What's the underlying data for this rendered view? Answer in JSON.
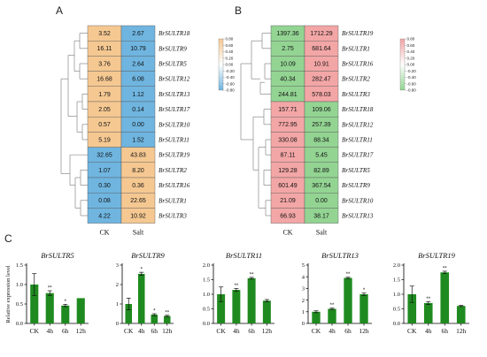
{
  "panel_labels": [
    "A",
    "B",
    "C"
  ],
  "colors": {
    "heat_A_high": "#f5c892",
    "heat_A_low": "#6fb5e0",
    "heat_B_high": "#f3a6a6",
    "heat_B_low": "#93d493",
    "bar_fill": "#1f8a1f",
    "axis": "#000000"
  },
  "chart_data": [
    {
      "type": "heatmap",
      "panel": "A",
      "columns": [
        "CK",
        "Salt"
      ],
      "rows": [
        "BrSULTR18",
        "BrSULTR9",
        "BrSULTR5",
        "BrSULTR12",
        "BrSULTR13",
        "BrSULTR17",
        "BrSULTR10",
        "BrSULTR11",
        "BrSULTR19",
        "BrSULTR2",
        "BrSULTR16",
        "BrSULTR1",
        "BrSULTR3"
      ],
      "values": [
        [
          3.52,
          2.67
        ],
        [
          16.11,
          10.79
        ],
        [
          3.76,
          2.64
        ],
        [
          16.68,
          6.08
        ],
        [
          1.79,
          1.12
        ],
        [
          2.05,
          0.14
        ],
        [
          0.57,
          0.0
        ],
        [
          5.19,
          1.52
        ],
        [
          32.65,
          43.83
        ],
        [
          1.07,
          8.2
        ],
        [
          0.3,
          0.36
        ],
        [
          0.08,
          22.65
        ],
        [
          4.22,
          10.92
        ]
      ],
      "value_labels": [
        [
          "3.52",
          "2.67"
        ],
        [
          "16.11",
          "10.79"
        ],
        [
          "3.76",
          "2.64"
        ],
        [
          "16.68",
          "6.08"
        ],
        [
          "1.79",
          "1.12"
        ],
        [
          "2.05",
          "0.14"
        ],
        [
          "0.57",
          "0.00"
        ],
        [
          "5.19",
          "1.52"
        ],
        [
          "32.65",
          "43.83"
        ],
        [
          "1.07",
          "8.20"
        ],
        [
          "0.30",
          "0.36"
        ],
        [
          "0.08",
          "22.65"
        ],
        [
          "4.22",
          "10.92"
        ]
      ],
      "color_state": [
        [
          "high",
          "low"
        ],
        [
          "high",
          "low"
        ],
        [
          "high",
          "low"
        ],
        [
          "high",
          "low"
        ],
        [
          "high",
          "low"
        ],
        [
          "high",
          "low"
        ],
        [
          "high",
          "low"
        ],
        [
          "high",
          "low"
        ],
        [
          "low",
          "high"
        ],
        [
          "low",
          "high"
        ],
        [
          "low",
          "high"
        ],
        [
          "low",
          "high"
        ],
        [
          "low",
          "high"
        ]
      ],
      "scale_ticks": [
        "0.80",
        "0.60",
        "0.40",
        "0.20",
        "0.00",
        "-0.20",
        "-0.40",
        "-0.60",
        "-0.80"
      ]
    },
    {
      "type": "heatmap",
      "panel": "B",
      "columns": [
        "CK",
        "Salt"
      ],
      "rows": [
        "BrSULTR19",
        "BrSULTR1",
        "BrSULTR16",
        "BrSULTR2",
        "BrSULTR3",
        "BrSULTR18",
        "BrSULTR12",
        "BrSULTR11",
        "BrSULTR17",
        "BrSULTR5",
        "BrSULTR9",
        "BrSULTR10",
        "BrSULTR13"
      ],
      "values": [
        [
          1397.36,
          1712.29
        ],
        [
          2.75,
          681.64
        ],
        [
          10.09,
          10.91
        ],
        [
          40.34,
          282.47
        ],
        [
          244.81,
          578.03
        ],
        [
          157.71,
          109.06
        ],
        [
          772.95,
          257.39
        ],
        [
          330.08,
          88.34
        ],
        [
          87.11,
          5.45
        ],
        [
          129.28,
          82.89
        ],
        [
          601.49,
          367.54
        ],
        [
          21.09,
          0.0
        ],
        [
          66.93,
          38.17
        ]
      ],
      "value_labels": [
        [
          "1397.36",
          "1712.29"
        ],
        [
          "2.75",
          "681.64"
        ],
        [
          "10.09",
          "10.91"
        ],
        [
          "40.34",
          "282.47"
        ],
        [
          "244.81",
          "578.03"
        ],
        [
          "157.71",
          "109.06"
        ],
        [
          "772.95",
          "257.39"
        ],
        [
          "330.08",
          "88.34"
        ],
        [
          "87.11",
          "5.45"
        ],
        [
          "129.28",
          "82.89"
        ],
        [
          "601.49",
          "367.54"
        ],
        [
          "21.09",
          "0.00"
        ],
        [
          "66.93",
          "38.17"
        ]
      ],
      "color_state": [
        [
          "low",
          "high"
        ],
        [
          "low",
          "high"
        ],
        [
          "low",
          "high"
        ],
        [
          "low",
          "high"
        ],
        [
          "low",
          "high"
        ],
        [
          "high",
          "low"
        ],
        [
          "high",
          "low"
        ],
        [
          "high",
          "low"
        ],
        [
          "high",
          "low"
        ],
        [
          "high",
          "low"
        ],
        [
          "high",
          "low"
        ],
        [
          "high",
          "low"
        ],
        [
          "high",
          "low"
        ]
      ],
      "scale_ticks": [
        "0.80",
        "0.60",
        "0.40",
        "0.20",
        "0.00",
        "-0.20",
        "-0.40",
        "-0.60",
        "-0.80"
      ]
    },
    {
      "type": "bar",
      "panel": "C",
      "title": "BrSULTR5",
      "ylabel": "Relative expression level",
      "categories": [
        "CK",
        "4h",
        "6h",
        "12h"
      ],
      "values": [
        1.0,
        0.78,
        0.46,
        0.65
      ],
      "errors": [
        0.28,
        0.06,
        0.03,
        0.0
      ],
      "significance": [
        "",
        "**",
        "*",
        ""
      ],
      "ylim": [
        0,
        1.5
      ],
      "yticks": [
        0.0,
        0.5,
        1.0,
        1.5
      ],
      "ytick_labels": [
        "0.0",
        "0.5",
        "1.0",
        "1.5"
      ]
    },
    {
      "type": "bar",
      "panel": "C",
      "title": "BrSULTR9",
      "ylabel": "",
      "categories": [
        "CK",
        "4h",
        "6h",
        "12h"
      ],
      "values": [
        1.0,
        2.55,
        0.45,
        0.38
      ],
      "errors": [
        0.3,
        0.08,
        0.05,
        0.04
      ],
      "significance": [
        "",
        "*",
        "*",
        "**"
      ],
      "ylim": [
        0,
        3
      ],
      "yticks": [
        0,
        1,
        2,
        3
      ],
      "ytick_labels": [
        "0",
        "1",
        "2",
        "3"
      ]
    },
    {
      "type": "bar",
      "panel": "C",
      "title": "BrSULTR11",
      "ylabel": "",
      "categories": [
        "CK",
        "4h",
        "6h",
        "12h"
      ],
      "values": [
        1.0,
        1.15,
        1.55,
        0.78
      ],
      "errors": [
        0.25,
        0.05,
        0.03,
        0.04
      ],
      "significance": [
        "",
        "**",
        "**",
        ""
      ],
      "ylim": [
        0,
        2.0
      ],
      "yticks": [
        0.0,
        0.5,
        1.0,
        1.5,
        2.0
      ],
      "ytick_labels": [
        "0.0",
        "0.5",
        "1.0",
        "1.5",
        "2.0"
      ]
    },
    {
      "type": "bar",
      "panel": "C",
      "title": "BrSULTR13",
      "ylabel": "",
      "categories": [
        "CK",
        "4h",
        "6h",
        "12h"
      ],
      "values": [
        1.0,
        1.25,
        3.9,
        2.5
      ],
      "errors": [
        0.08,
        0.06,
        0.06,
        0.1
      ],
      "significance": [
        "",
        "**",
        "**",
        "*"
      ],
      "ylim": [
        0,
        5
      ],
      "yticks": [
        0,
        1,
        2,
        3,
        4,
        5
      ],
      "ytick_labels": [
        "0",
        "1",
        "2",
        "3",
        "4",
        "5"
      ]
    },
    {
      "type": "bar",
      "panel": "C",
      "title": "BrSULTR19",
      "ylabel": "",
      "categories": [
        "CK",
        "4h",
        "6h",
        "12h"
      ],
      "values": [
        1.0,
        0.7,
        1.75,
        0.6
      ],
      "errors": [
        0.28,
        0.05,
        0.04,
        0.02
      ],
      "significance": [
        "",
        "**",
        "**",
        ""
      ],
      "ylim": [
        0,
        2.0
      ],
      "yticks": [
        0.0,
        0.5,
        1.0,
        1.5,
        2.0
      ],
      "ytick_labels": [
        "0.0",
        "0.5",
        "1.0",
        "1.5",
        "2.0"
      ]
    }
  ]
}
